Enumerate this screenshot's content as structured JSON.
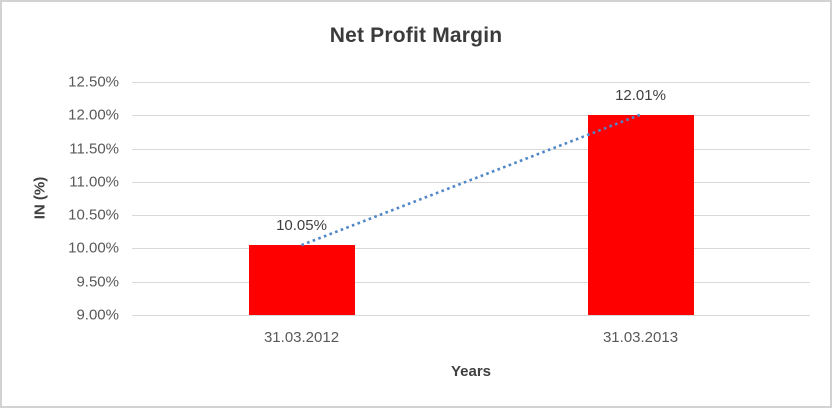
{
  "window": {
    "background": "#ffffff",
    "border_color": "#d2d2d2"
  },
  "chart_data": {
    "type": "bar",
    "title": "Net Profit Margin",
    "xlabel": "Years",
    "ylabel": "IN (%)",
    "categories": [
      "31.03.2012",
      "31.03.2013"
    ],
    "series": [
      {
        "name": "Net Profit Margin",
        "type": "bar",
        "values": [
          10.05,
          12.01
        ],
        "color": "#ff0000"
      },
      {
        "name": "trend-line",
        "type": "line",
        "values": [
          10.05,
          12.01
        ],
        "color": "#4e86c8",
        "style": "dotted"
      }
    ],
    "data_labels": [
      "10.05%",
      "12.01%"
    ],
    "y_ticks": [
      "12.50%",
      "12.00%",
      "11.50%",
      "11.00%",
      "10.50%",
      "10.00%",
      "9.50%",
      "9.00%"
    ],
    "ylim": [
      9.0,
      12.5
    ],
    "y_step": 0.5,
    "grid": true,
    "gridline_color": "#d9d9d9",
    "legend_position": "none"
  }
}
